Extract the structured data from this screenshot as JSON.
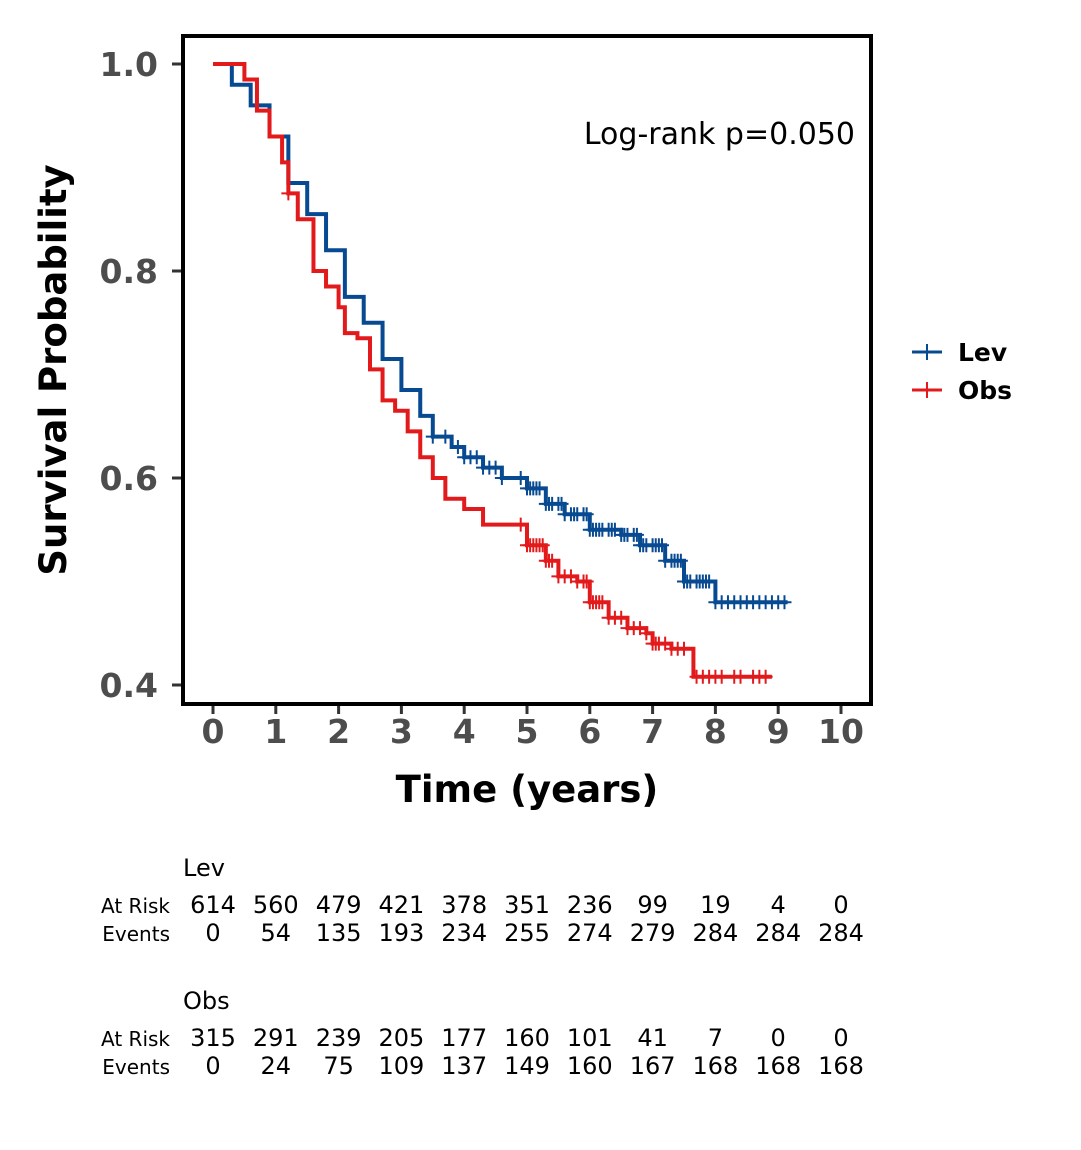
{
  "chart_data": {
    "type": "line",
    "subtype": "kaplan-meier survival curve",
    "xlabel": "Time (years)",
    "ylabel": "Survival Probability",
    "xlim": [
      -0.5,
      10.5
    ],
    "ylim": [
      0.38,
      1.03
    ],
    "x_ticks": [
      0,
      1,
      2,
      3,
      4,
      5,
      6,
      7,
      8,
      9,
      10
    ],
    "y_ticks": [
      0.4,
      0.6,
      0.8,
      1.0
    ],
    "y_tick_labels": [
      "0.4",
      "0.6",
      "0.8",
      "1.0"
    ],
    "annotation": "Log-rank p=0.050",
    "legend_position": "right",
    "grid": false,
    "series": [
      {
        "name": "Lev",
        "color": "#084A91",
        "points": [
          [
            0.0,
            1.0
          ],
          [
            0.3,
            0.98
          ],
          [
            0.6,
            0.96
          ],
          [
            0.9,
            0.93
          ],
          [
            1.2,
            0.885
          ],
          [
            1.5,
            0.855
          ],
          [
            1.8,
            0.82
          ],
          [
            2.1,
            0.775
          ],
          [
            2.4,
            0.75
          ],
          [
            2.7,
            0.715
          ],
          [
            3.0,
            0.685
          ],
          [
            3.3,
            0.66
          ],
          [
            3.5,
            0.64
          ],
          [
            3.8,
            0.63
          ],
          [
            4.0,
            0.62
          ],
          [
            4.3,
            0.61
          ],
          [
            4.6,
            0.6
          ],
          [
            5.0,
            0.59
          ],
          [
            5.3,
            0.575
          ],
          [
            5.6,
            0.565
          ],
          [
            6.0,
            0.55
          ],
          [
            6.5,
            0.545
          ],
          [
            6.8,
            0.535
          ],
          [
            7.2,
            0.52
          ],
          [
            7.5,
            0.5
          ],
          [
            8.0,
            0.5
          ],
          [
            8.0,
            0.48
          ],
          [
            9.15,
            0.48
          ]
        ],
        "censor_x": [
          3.5,
          3.7,
          3.9,
          4.0,
          4.1,
          4.2,
          4.3,
          4.4,
          4.5,
          4.6,
          4.9,
          5.0,
          5.05,
          5.1,
          5.15,
          5.2,
          5.3,
          5.35,
          5.4,
          5.5,
          5.55,
          5.6,
          5.7,
          5.75,
          5.8,
          5.9,
          5.95,
          6.0,
          6.05,
          6.1,
          6.15,
          6.2,
          6.3,
          6.35,
          6.4,
          6.5,
          6.55,
          6.6,
          6.7,
          6.75,
          6.8,
          6.85,
          6.9,
          7.0,
          7.05,
          7.1,
          7.15,
          7.2,
          7.3,
          7.35,
          7.4,
          7.45,
          7.5,
          7.55,
          7.6,
          7.7,
          7.75,
          7.8,
          7.85,
          7.9,
          8.0,
          8.1,
          8.2,
          8.3,
          8.4,
          8.5,
          8.6,
          8.7,
          8.8,
          8.9,
          9.0,
          9.1
        ]
      },
      {
        "name": "Obs",
        "color": "#E31A1C",
        "points": [
          [
            0.0,
            1.0
          ],
          [
            0.3,
            1.0
          ],
          [
            0.5,
            0.985
          ],
          [
            0.7,
            0.955
          ],
          [
            0.9,
            0.93
          ],
          [
            1.1,
            0.905
          ],
          [
            1.2,
            0.875
          ],
          [
            1.35,
            0.85
          ],
          [
            1.6,
            0.8
          ],
          [
            1.8,
            0.785
          ],
          [
            2.0,
            0.765
          ],
          [
            2.1,
            0.74
          ],
          [
            2.3,
            0.735
          ],
          [
            2.5,
            0.705
          ],
          [
            2.7,
            0.675
          ],
          [
            2.9,
            0.665
          ],
          [
            3.1,
            0.645
          ],
          [
            3.3,
            0.62
          ],
          [
            3.5,
            0.6
          ],
          [
            3.7,
            0.58
          ],
          [
            4.0,
            0.57
          ],
          [
            4.3,
            0.555
          ],
          [
            4.6,
            0.555
          ],
          [
            5.0,
            0.535
          ],
          [
            5.3,
            0.52
          ],
          [
            5.5,
            0.505
          ],
          [
            5.8,
            0.5
          ],
          [
            6.0,
            0.48
          ],
          [
            6.3,
            0.465
          ],
          [
            6.6,
            0.455
          ],
          [
            6.9,
            0.45
          ],
          [
            7.0,
            0.44
          ],
          [
            7.3,
            0.435
          ],
          [
            7.6,
            0.435
          ],
          [
            7.65,
            0.408
          ],
          [
            8.9,
            0.408
          ]
        ],
        "censor_x": [
          1.2,
          4.9,
          5.0,
          5.05,
          5.1,
          5.15,
          5.2,
          5.25,
          5.3,
          5.35,
          5.4,
          5.5,
          5.6,
          5.7,
          5.8,
          5.9,
          5.95,
          6.0,
          6.05,
          6.1,
          6.15,
          6.2,
          6.3,
          6.4,
          6.5,
          6.6,
          6.7,
          6.8,
          6.9,
          7.0,
          7.05,
          7.1,
          7.2,
          7.3,
          7.4,
          7.5,
          7.7,
          7.8,
          7.9,
          8.0,
          8.1,
          8.3,
          8.4,
          8.6,
          8.7,
          8.8
        ]
      }
    ],
    "risk_table": {
      "times": [
        "0",
        "1",
        "2",
        "3",
        "4",
        "5",
        "6",
        "7",
        "8",
        "9",
        "10"
      ],
      "row_labels": [
        "At Risk",
        "Events"
      ],
      "groups": [
        {
          "name": "Lev",
          "at_risk": [
            "614",
            "560",
            "479",
            "421",
            "378",
            "351",
            "236",
            "99",
            "19",
            "4",
            "0"
          ],
          "events": [
            "0",
            "54",
            "135",
            "193",
            "234",
            "255",
            "274",
            "279",
            "284",
            "284",
            "284"
          ]
        },
        {
          "name": "Obs",
          "at_risk": [
            "315",
            "291",
            "239",
            "205",
            "177",
            "160",
            "101",
            "41",
            "7",
            "0",
            "0"
          ],
          "events": [
            "0",
            "24",
            "75",
            "109",
            "137",
            "149",
            "160",
            "167",
            "168",
            "168",
            "168"
          ]
        }
      ]
    }
  }
}
